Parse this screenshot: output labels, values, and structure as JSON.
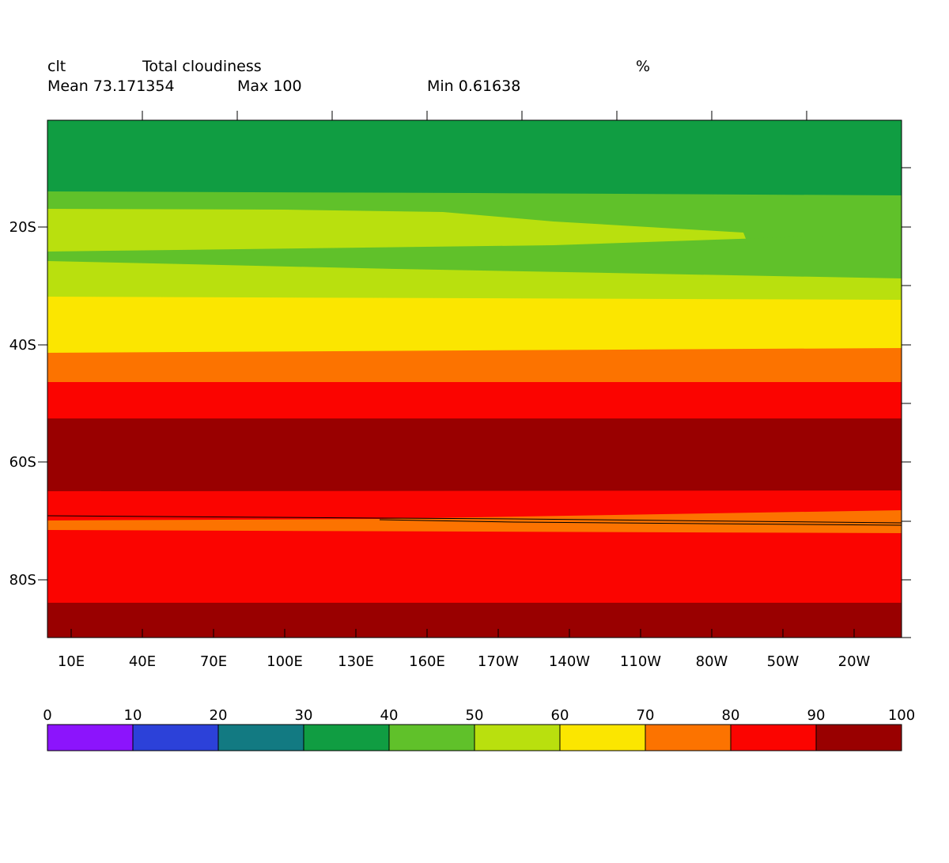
{
  "header": {
    "variable": "clt",
    "long_name": "Total cloudiness",
    "units": "%",
    "mean_label": "Mean 73.171354",
    "max_label": "Max 100",
    "min_label": "Min 0.61638"
  },
  "chart_data": {
    "type": "heatmap",
    "title": "Total cloudiness",
    "x_ticks": [
      "10E",
      "40E",
      "70E",
      "100E",
      "130E",
      "160E",
      "170W",
      "140W",
      "110W",
      "80W",
      "50W",
      "20W"
    ],
    "y_ticks": [
      "20S",
      "40S",
      "60S",
      "80S"
    ],
    "colorbar": {
      "levels": [
        0,
        10,
        20,
        30,
        40,
        50,
        60,
        70,
        80,
        90,
        100
      ],
      "colors": [
        "#8c14fc",
        "#2c41d9",
        "#127a82",
        "#109d42",
        "#60c12a",
        "#b9e00e",
        "#fbe600",
        "#fc7300",
        "#fb0400",
        "#990000"
      ]
    },
    "bands": [
      {
        "range": "30-40",
        "color": "#109d42"
      },
      {
        "range": "40-50",
        "color": "#60c12a"
      },
      {
        "range": "50-60",
        "color": "#b9e00e"
      },
      {
        "range": "40-50",
        "color": "#60c12a"
      },
      {
        "range": "50-60",
        "color": "#b9e00e"
      },
      {
        "range": "60-70",
        "color": "#fbe600"
      },
      {
        "range": "70-80",
        "color": "#fc7300"
      },
      {
        "range": "80-90",
        "color": "#fb0400"
      },
      {
        "range": "90-100",
        "color": "#990000"
      },
      {
        "range": "80-90",
        "color": "#fb0400"
      },
      {
        "range": "70-80",
        "color": "#fc7300"
      },
      {
        "range": "80-90",
        "color": "#fb0400"
      },
      {
        "range": "90-100",
        "color": "#990000"
      }
    ]
  }
}
